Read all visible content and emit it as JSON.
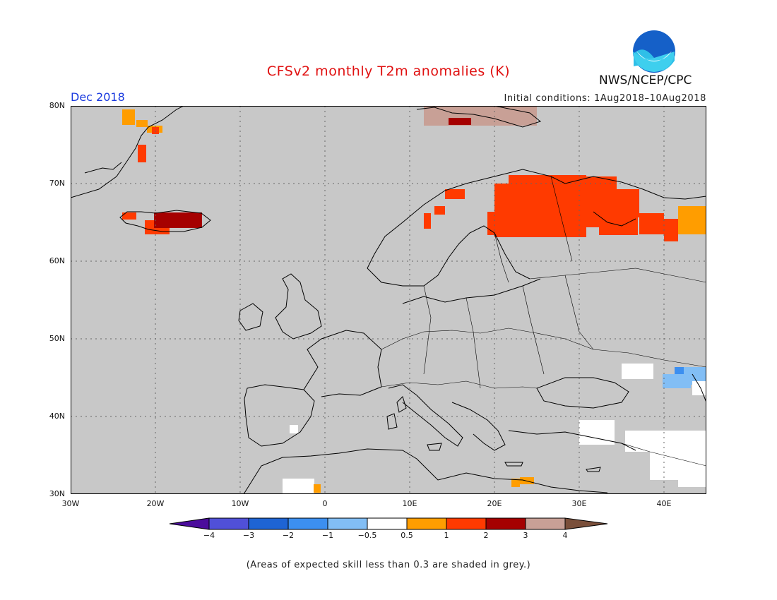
{
  "title": "CFSv2 monthly T2m anomalies (K)",
  "period": "Dec 2018",
  "initial_conditions": "Initial conditions: 1Aug2018–10Aug2018",
  "agency": "NWS/NCEP/CPC",
  "logo_text": "NOAA",
  "lat_labels": [
    "80N",
    "70N",
    "60N",
    "50N",
    "40N",
    "30N"
  ],
  "lon_labels": [
    "30W",
    "20W",
    "10W",
    "0",
    "10E",
    "20E",
    "30E",
    "40E"
  ],
  "colorbar": {
    "labels": [
      "−4",
      "−3",
      "−2",
      "−1",
      "−0.5",
      "0.5",
      "1",
      "2",
      "3",
      "4"
    ],
    "colors": [
      "#4b0c9c",
      "#5050d8",
      "#1e64d4",
      "#3c8ff0",
      "#82bef5",
      "#ffffff",
      "#ff9d00",
      "#ff3a00",
      "#a50000",
      "#c8a096",
      "#7a4f3a"
    ]
  },
  "footnote": "(Areas of expected skill less than 0.3 are shaded in grey.)",
  "colors": {
    "skill_mask_grey": "#c8c8c8",
    "title_red": "#e01010",
    "period_blue": "#1a3adf"
  },
  "chart_data": {
    "type": "heatmap",
    "map_extent": {
      "lon": [
        -30,
        45
      ],
      "lat": [
        30,
        80
      ]
    },
    "units": "K",
    "anomaly_regions": [
      {
        "region": "Finland / Karelia / Kola",
        "anomaly_class": "1 to 2"
      },
      {
        "region": "Northern Norway coast",
        "anomaly_class": "1 to 2"
      },
      {
        "region": "Iceland",
        "anomaly_class": "2 to 3"
      },
      {
        "region": "East Greenland coast",
        "anomaly_class": "0.5 to 1"
      },
      {
        "region": "Svalbard",
        "anomaly_class": "3 to 4"
      },
      {
        "region": "NW Russia (far east edge)",
        "anomaly_class": "0.5 to 1"
      },
      {
        "region": "Caucasus",
        "anomaly_class": "-1 to -0.5"
      },
      {
        "region": "Turkey / Middle East",
        "anomaly_class": "-0.5 to 0.5"
      },
      {
        "region": "Crete / Libya coast",
        "anomaly_class": "0.5 to 1"
      }
    ]
  }
}
